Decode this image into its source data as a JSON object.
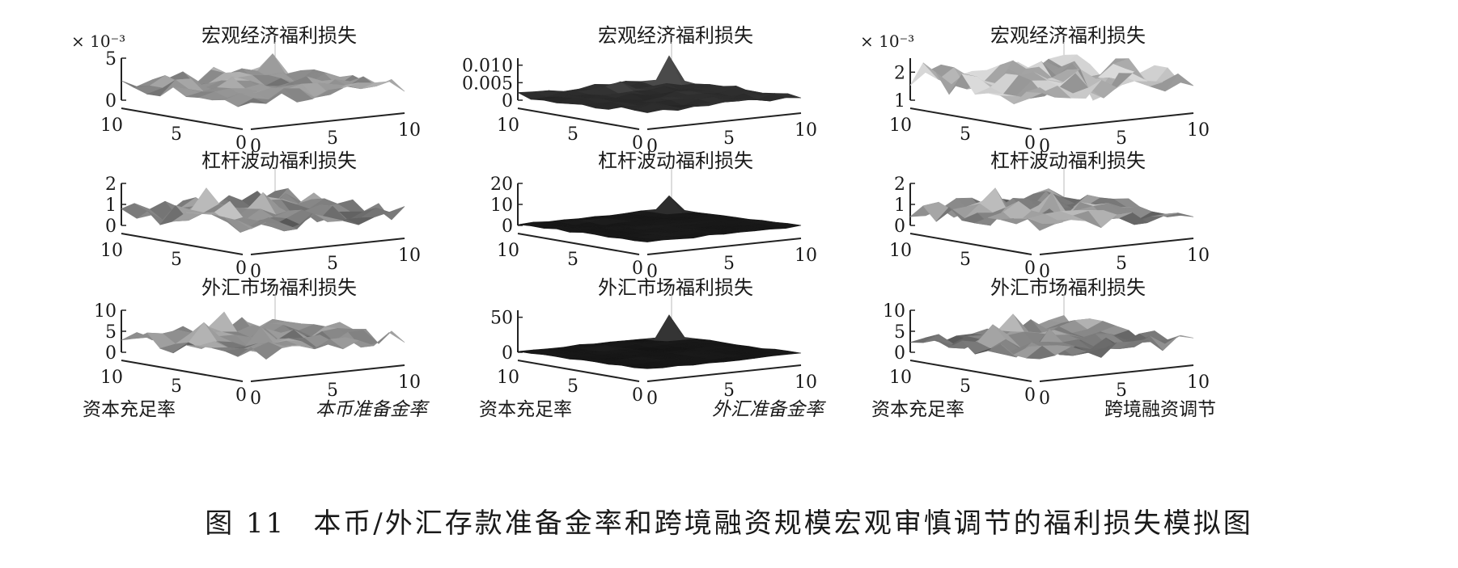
{
  "caption": {
    "figure_label": "图 11",
    "text": "本币/外汇存款准备金率和跨境融资规模宏观审慎调节的福利损失模拟图"
  },
  "colors": {
    "surface_dark": "#151515",
    "surface_light": "#d8d8d8",
    "axis": "#222222",
    "text": "#1a1a1a"
  },
  "columns": [
    {
      "ylabel": "资本充足率",
      "xlabel": "本币准备金率",
      "xlabel_italic": true
    },
    {
      "ylabel": "资本充足率",
      "xlabel": "外汇准备金率",
      "xlabel_italic": true
    },
    {
      "ylabel": "资本充足率",
      "xlabel": "跨境融资调节",
      "xlabel_italic": false
    }
  ],
  "chart_data": [
    {
      "type": "surface",
      "title": "宏观经济福利损失",
      "x_ticks": [
        "0",
        "5",
        "10"
      ],
      "y_ticks": [
        "10",
        "5",
        "0"
      ],
      "z_ticks": [
        "0",
        "5"
      ],
      "zlim": [
        0,
        5
      ],
      "multiplier": "× 10⁻³",
      "base": 2.0,
      "amp": 0.9,
      "spike_cells": [
        [
          9,
          9,
          4.0
        ],
        [
          3,
          5,
          3.2
        ]
      ],
      "shade": "mixed"
    },
    {
      "type": "surface",
      "title": "宏观经济福利损失",
      "x_ticks": [
        "0",
        "5",
        "10"
      ],
      "y_ticks": [
        "10",
        "5",
        "0"
      ],
      "z_ticks": [
        "0",
        "0.005",
        "0.010"
      ],
      "zlim": [
        0,
        0.012
      ],
      "multiplier": "",
      "base": 0.0015,
      "amp": 0.0008,
      "spike_cells": [
        [
          9,
          9,
          0.009
        ],
        [
          4,
          8,
          0.003
        ],
        [
          5,
          8,
          0.004
        ]
      ],
      "shade": "dark"
    },
    {
      "type": "surface",
      "title": "宏观经济福利损失",
      "x_ticks": [
        "0",
        "5",
        "10"
      ],
      "y_ticks": [
        "10",
        "5",
        "0"
      ],
      "z_ticks": [
        "1",
        "2"
      ],
      "zlim": [
        1,
        2.5
      ],
      "multiplier": "× 10⁻³",
      "base": 1.8,
      "amp": 0.45,
      "spike_cells": [
        [
          0,
          9,
          2.4
        ],
        [
          6,
          3,
          1.1
        ]
      ],
      "shade": "light"
    },
    {
      "type": "surface",
      "title": "杠杆波动福利损失",
      "x_ticks": [
        "0",
        "5",
        "10"
      ],
      "y_ticks": [
        "10",
        "5",
        "0"
      ],
      "z_ticks": [
        "0",
        "1",
        "2"
      ],
      "zlim": [
        0,
        2
      ],
      "multiplier": "",
      "base": 0.7,
      "amp": 0.45,
      "spike_cells": [
        [
          3,
          7,
          1.8
        ],
        [
          5,
          5,
          1.6
        ],
        [
          2,
          4,
          1.5
        ],
        [
          8,
          9,
          1.1
        ]
      ],
      "shade": "mixed"
    },
    {
      "type": "surface",
      "title": "杠杆波动福利损失",
      "x_ticks": [
        "0",
        "5",
        "10"
      ],
      "y_ticks": [
        "10",
        "5",
        "0"
      ],
      "z_ticks": [
        "0",
        "10",
        "20"
      ],
      "zlim": [
        0,
        20
      ],
      "multiplier": "",
      "base": 0.5,
      "amp": 0.4,
      "spike_cells": [
        [
          9,
          9,
          8.0
        ],
        [
          4,
          8,
          2.0
        ]
      ],
      "shade": "dark"
    },
    {
      "type": "surface",
      "title": "杠杆波动福利损失",
      "x_ticks": [
        "0",
        "5",
        "10"
      ],
      "y_ticks": [
        "10",
        "5",
        "0"
      ],
      "z_ticks": [
        "0",
        "1",
        "2"
      ],
      "zlim": [
        0,
        2
      ],
      "multiplier": "",
      "base": 0.7,
      "amp": 0.45,
      "spike_cells": [
        [
          3,
          7,
          1.8
        ],
        [
          5,
          5,
          1.6
        ],
        [
          2,
          4,
          1.5
        ],
        [
          8,
          9,
          1.1
        ]
      ],
      "shade": "mixed"
    },
    {
      "type": "surface",
      "title": "外汇市场福利损失",
      "x_ticks": [
        "0",
        "5",
        "10"
      ],
      "y_ticks": [
        "10",
        "5",
        "0"
      ],
      "z_ticks": [
        "0",
        "5",
        "10"
      ],
      "zlim": [
        0,
        10
      ],
      "multiplier": "",
      "base": 3.5,
      "amp": 2.0,
      "spike_cells": [
        [
          2,
          6,
          8.0
        ],
        [
          5,
          8,
          8.5
        ],
        [
          4,
          4,
          7.0
        ],
        [
          7,
          9,
          6.0
        ]
      ],
      "shade": "mixed"
    },
    {
      "type": "surface",
      "title": "外汇市场福利损失",
      "x_ticks": [
        "0",
        "5",
        "10"
      ],
      "y_ticks": [
        "10",
        "5",
        "0"
      ],
      "z_ticks": [
        "0",
        "50"
      ],
      "zlim": [
        0,
        60
      ],
      "multiplier": "",
      "base": 1.0,
      "amp": 1.0,
      "spike_cells": [
        [
          9,
          9,
          35
        ],
        [
          4,
          8,
          6
        ]
      ],
      "shade": "dark"
    },
    {
      "type": "surface",
      "title": "外汇市场福利损失",
      "x_ticks": [
        "0",
        "5",
        "10"
      ],
      "y_ticks": [
        "10",
        "5",
        "0"
      ],
      "z_ticks": [
        "0",
        "5",
        "10"
      ],
      "zlim": [
        0,
        10
      ],
      "multiplier": "",
      "base": 3.2,
      "amp": 1.8,
      "spike_cells": [
        [
          2,
          6,
          7.5
        ],
        [
          5,
          8,
          8.0
        ],
        [
          4,
          4,
          6.5
        ],
        [
          7,
          9,
          5.5
        ]
      ],
      "shade": "mixed"
    }
  ]
}
